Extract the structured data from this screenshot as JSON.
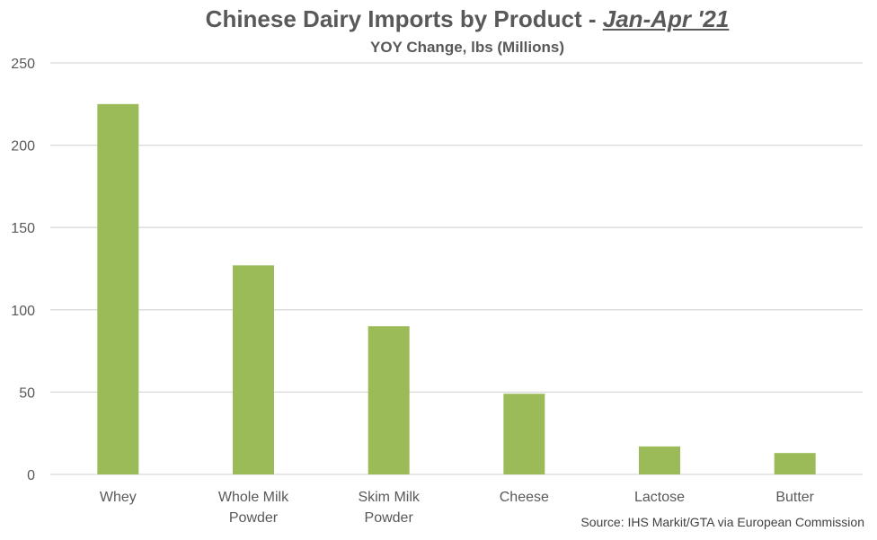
{
  "chart_data": {
    "type": "bar",
    "title": "Chinese Dairy Imports by Product - ",
    "title_emphasis": "Jan-Apr '21",
    "subtitle": "YOY Change, lbs (Millions)",
    "xlabel": "",
    "ylabel": "",
    "categories": [
      "Whey",
      "Whole Milk Powder",
      "Skim Milk Powder",
      "Cheese",
      "Lactose",
      "Butter"
    ],
    "category_lines": [
      [
        "Whey"
      ],
      [
        "Whole Milk",
        "Powder"
      ],
      [
        "Skim Milk",
        "Powder"
      ],
      [
        "Cheese"
      ],
      [
        "Lactose"
      ],
      [
        "Butter"
      ]
    ],
    "values": [
      225,
      127,
      90,
      49,
      17,
      13
    ],
    "ylim": [
      0,
      250
    ],
    "yticks": [
      0,
      50,
      100,
      150,
      200,
      250
    ],
    "grid": true,
    "legend": "none",
    "bar_color": "#9BBB59",
    "source": "Source: IHS Markit/GTA via European Commission"
  }
}
